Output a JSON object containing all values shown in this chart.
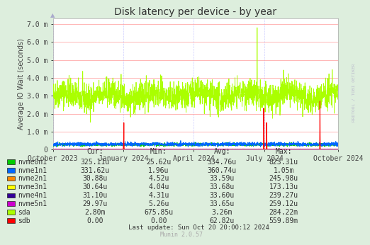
{
  "title": "Disk latency per device - by year",
  "ylabel": "Average IO Wait (seconds)",
  "background_color": "#ddeedd",
  "plot_bg_color": "#ffffff",
  "grid_color_h": "#ff9999",
  "grid_color_v": "#ccccff",
  "ytick_labels": [
    "0",
    "1.0 m",
    "2.0 m",
    "3.0 m",
    "4.0 m",
    "5.0 m",
    "6.0 m",
    "7.0 m"
  ],
  "ytick_values": [
    0,
    0.001,
    0.002,
    0.003,
    0.004,
    0.005,
    0.006,
    0.007
  ],
  "ylim": [
    0,
    0.0073
  ],
  "xtick_labels": [
    "October 2023",
    "January 2024",
    "April 2024",
    "July 2024",
    "October 2024"
  ],
  "xtick_pos": [
    0.0,
    0.247,
    0.493,
    0.742,
    1.0
  ],
  "legend_entries": [
    {
      "label": "nvme0n1",
      "color": "#00cc00"
    },
    {
      "label": "nvme1n1",
      "color": "#0066ff"
    },
    {
      "label": "nvme2n1",
      "color": "#ff8800"
    },
    {
      "label": "nvme3n1",
      "color": "#ffff00"
    },
    {
      "label": "nvme4n1",
      "color": "#330099"
    },
    {
      "label": "nvme5n1",
      "color": "#cc00cc"
    },
    {
      "label": "sda",
      "color": "#aaff00"
    },
    {
      "label": "sdb",
      "color": "#ff0000"
    }
  ],
  "col_headers": [
    "Cur:",
    "Min:",
    "Avg:",
    "Max:"
  ],
  "legend_cols": [
    [
      "325.11u",
      "331.62u",
      "30.88u",
      "30.64u",
      "31.10u",
      "29.97u",
      "2.80m",
      "0.00"
    ],
    [
      "25.62u",
      "1.96u",
      "4.52u",
      "4.04u",
      "4.31u",
      "5.26u",
      "675.85u",
      "0.00"
    ],
    [
      "334.76u",
      "360.74u",
      "33.59u",
      "33.68u",
      "33.60u",
      "33.65u",
      "3.26m",
      "62.82u"
    ],
    [
      "823.31u",
      "1.05m",
      "245.98u",
      "173.13u",
      "239.27u",
      "259.12u",
      "284.22m",
      "559.89m"
    ]
  ],
  "watermark": "RRDTOOL / TOBI OETIKER",
  "munin_version": "Munin 2.0.57",
  "last_update": "Last update: Sun Oct 20 20:00:12 2024"
}
